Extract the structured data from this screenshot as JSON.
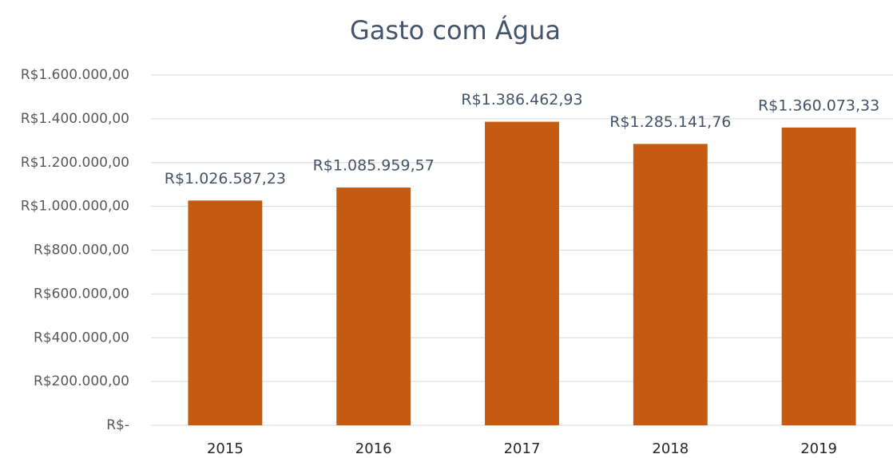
{
  "chart_data": {
    "type": "bar",
    "title": "Gasto com Água",
    "categories": [
      "2015",
      "2016",
      "2017",
      "2018",
      "2019"
    ],
    "values": [
      1026587.23,
      1085959.57,
      1386462.93,
      1285141.76,
      1360073.33
    ],
    "value_labels": [
      "R$1.026.587,23",
      "R$1.085.959,57",
      "R$1.386.462,93",
      "R$1.285.141,76",
      "R$1.360.073,33"
    ],
    "color": "#c55a11",
    "ylim": [
      0,
      1600000
    ],
    "yticks": [
      {
        "value": 0,
        "label": "R$-"
      },
      {
        "value": 200000,
        "label": "R$200.000,00"
      },
      {
        "value": 400000,
        "label": "R$400.000,00"
      },
      {
        "value": 600000,
        "label": "R$600.000,00"
      },
      {
        "value": 800000,
        "label": "R$800.000,00"
      },
      {
        "value": 1000000,
        "label": "R$1.000.000,00"
      },
      {
        "value": 1200000,
        "label": "R$1.200.000,00"
      },
      {
        "value": 1400000,
        "label": "R$1.400.000,00"
      },
      {
        "value": 1600000,
        "label": "R$1.600.000,00"
      }
    ],
    "grid": true
  }
}
